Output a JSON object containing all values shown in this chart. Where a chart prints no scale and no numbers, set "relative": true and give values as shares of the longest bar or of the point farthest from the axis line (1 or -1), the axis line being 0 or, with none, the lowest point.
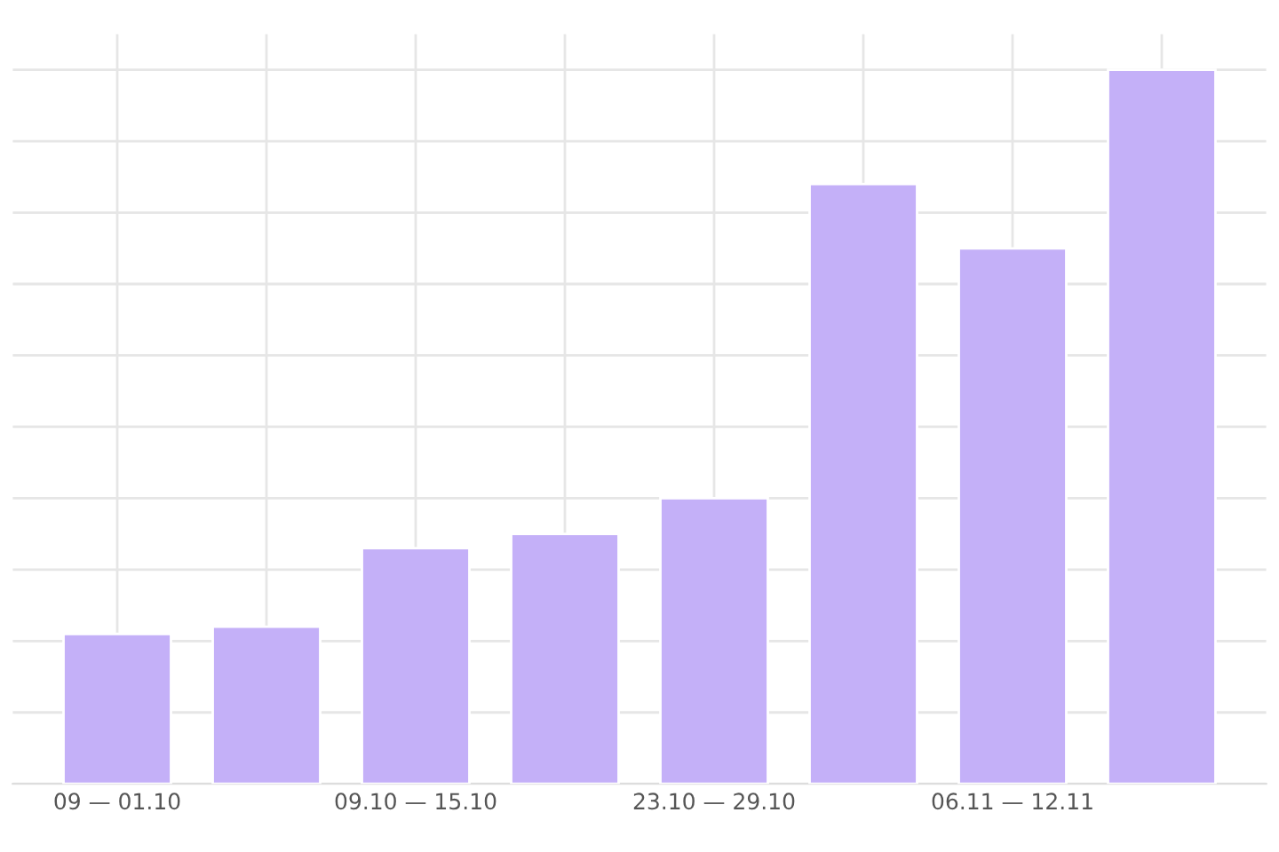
{
  "chart_data": {
    "type": "bar",
    "relative": true,
    "categories": [
      "09 — 01.10",
      null,
      "09.10 — 15.10",
      null,
      "23.10 — 29.10",
      null,
      "06.11 — 12.11",
      null
    ],
    "values": [
      0.21,
      0.22,
      0.33,
      0.35,
      0.4,
      0.84,
      0.75,
      1.0
    ],
    "color": "#c4b0f8",
    "grid": true
  }
}
